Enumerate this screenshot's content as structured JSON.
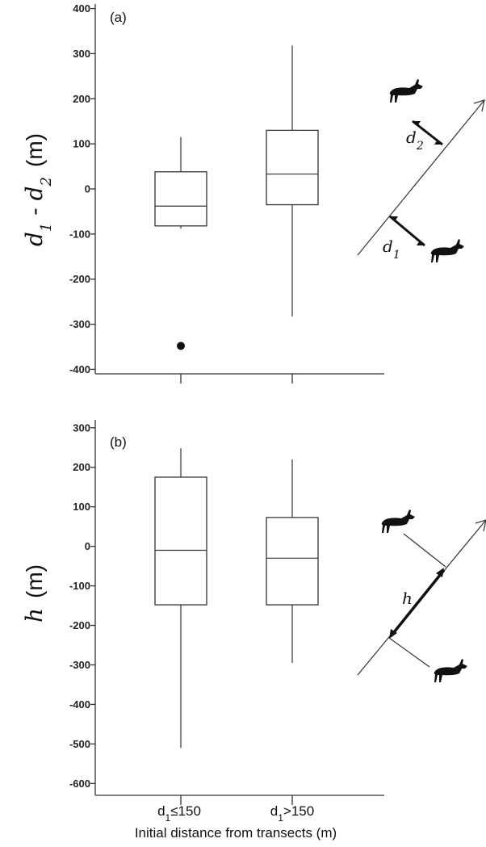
{
  "chart_data": [
    {
      "type": "box",
      "panel_label": "(a)",
      "ylabel_main": "d",
      "ylabel_sub1": "1",
      "ylabel_mid": " - d",
      "ylabel_sub2": "2",
      "ylabel_unit": "(m)",
      "ylim": [
        -410,
        410
      ],
      "yticks": [
        400,
        300,
        200,
        100,
        0,
        -100,
        -200,
        -300,
        -400
      ],
      "yticklabels": [
        "400",
        "300",
        "200",
        "100",
        "0",
        "-100",
        "-200",
        "-300",
        "-400"
      ],
      "categories": [
        "d1≤150",
        "d1>150"
      ],
      "boxes": [
        {
          "whisker_low": -88,
          "q1": -82,
          "median": -38,
          "q3": 38,
          "whisker_high": 115,
          "outliers": [
            -348
          ]
        },
        {
          "whisker_low": -283,
          "q1": -35,
          "median": 33,
          "q3": 130,
          "whisker_high": 318,
          "outliers": []
        }
      ],
      "diagram_labels": {
        "a_main": "d",
        "a_sub": "2",
        "b_main": "d",
        "b_sub": "1"
      }
    },
    {
      "type": "box",
      "panel_label": "(b)",
      "ylabel_main": "h",
      "ylabel_unit": "(m)",
      "ylim": [
        -630,
        320
      ],
      "yticks": [
        300,
        200,
        100,
        0,
        -100,
        -200,
        -300,
        -400,
        -500,
        -600
      ],
      "yticklabels": [
        "300",
        "200",
        "100",
        "0",
        "-100",
        "-200",
        "-300",
        "-400",
        "-500",
        "-600"
      ],
      "categories": [
        "d1≤150",
        "d1>150"
      ],
      "boxes": [
        {
          "whisker_low": -510,
          "q1": -148,
          "median": -10,
          "q3": 175,
          "whisker_high": 248,
          "outliers": []
        },
        {
          "whisker_low": -295,
          "q1": -148,
          "median": -30,
          "q3": 73,
          "whisker_high": 220,
          "outliers": []
        }
      ],
      "diagram_labels": {
        "h_label": "h"
      }
    }
  ],
  "xaxis": {
    "categories": [
      {
        "main": "d",
        "sub": "1",
        "rest": "≤150"
      },
      {
        "main": "d",
        "sub": "1",
        "rest": ">150"
      }
    ],
    "title": "Initial distance from transects (m)"
  }
}
